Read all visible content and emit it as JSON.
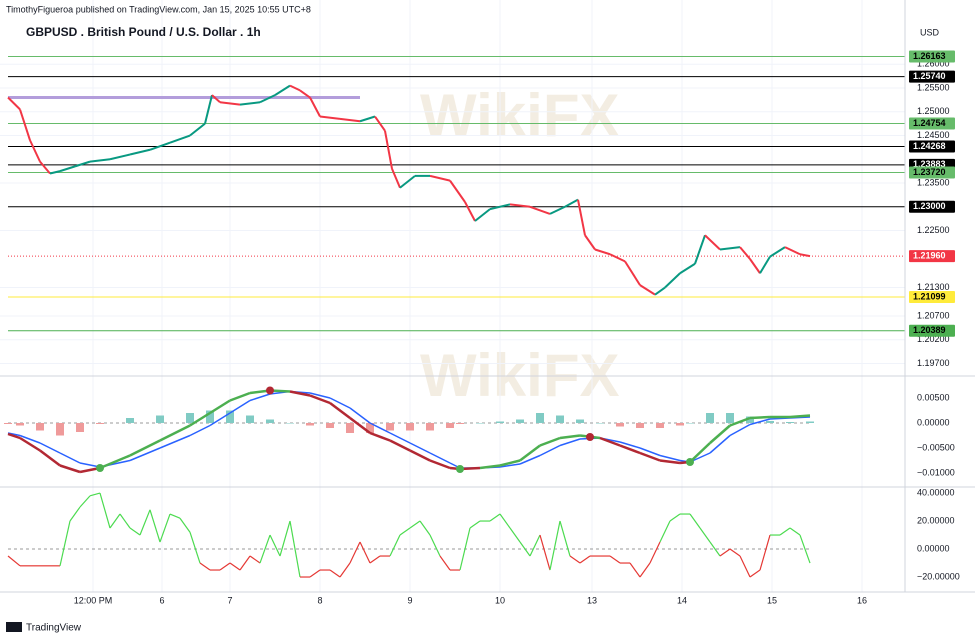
{
  "header": {
    "publisher": "TimothyFigueroa published on TradingView.com, Jan 15, 2025 10:55 UTC+8",
    "footer": "TradingView",
    "watermark": "WikiFX",
    "currency": "USD"
  },
  "chart_data": [
    {
      "type": "line",
      "title": "GBPUSD . British Pound / U.S. Dollar . 1h",
      "x": [
        0.8,
        2,
        3,
        4,
        5,
        6,
        7.5,
        9,
        11,
        13,
        15,
        17,
        19,
        20.5,
        21.2,
        22,
        24,
        26,
        27.5,
        29,
        30,
        31,
        32,
        34,
        36,
        37.5,
        38.5,
        39.2,
        40,
        41.5,
        43,
        45,
        46.5,
        47.5,
        49,
        51,
        53,
        55,
        56.5,
        57.8,
        58.5,
        59.5,
        61,
        62.5,
        64,
        65.5,
        66.5,
        68,
        69.5,
        70.5,
        72,
        74,
        75,
        76,
        77,
        78.5,
        80,
        81
      ],
      "values": [
        1.253,
        1.2505,
        1.244,
        1.2395,
        1.237,
        1.2375,
        1.2385,
        1.2395,
        1.24,
        1.241,
        1.242,
        1.2435,
        1.245,
        1.2475,
        1.2535,
        1.252,
        1.2515,
        1.252,
        1.2535,
        1.2555,
        1.2545,
        1.253,
        1.249,
        1.2485,
        1.248,
        1.249,
        1.246,
        1.238,
        1.234,
        1.2365,
        1.2365,
        1.2355,
        1.231,
        1.227,
        1.2295,
        1.2305,
        1.23,
        1.2285,
        1.23,
        1.2315,
        1.224,
        1.221,
        1.22,
        1.2185,
        1.2135,
        1.2115,
        1.213,
        1.216,
        1.218,
        1.224,
        1.221,
        1.2215,
        1.219,
        1.216,
        1.2195,
        1.2215,
        1.22,
        1.2196
      ],
      "up_color": "#089981",
      "down_color": "#f23645",
      "grid": true,
      "xlim": [
        0,
        90
      ],
      "ylim": [
        1.19458,
        1.27353
      ],
      "yticks": [
        {
          "value": 1.26,
          "label": "1.26000"
        },
        {
          "value": 1.255,
          "label": "1.25500"
        },
        {
          "value": 1.25,
          "label": "1.25000"
        },
        {
          "value": 1.245,
          "label": "1.24500"
        },
        {
          "value": 1.235,
          "label": "1.23500"
        },
        {
          "value": 1.225,
          "label": "1.22500"
        },
        {
          "value": 1.213,
          "label": "1.21300"
        },
        {
          "value": 1.207,
          "label": "1.20700"
        },
        {
          "value": 1.202,
          "label": "1.20200"
        },
        {
          "value": 1.197,
          "label": "1.19700"
        }
      ],
      "levels": [
        {
          "value": 1.26163,
          "label": "1.26163",
          "color": "#66bb6a",
          "text_color": "#000000"
        },
        {
          "value": 1.2574,
          "label": "1.25740",
          "color": "#000000",
          "text_color": "#ffffff"
        },
        {
          "value": 1.24754,
          "label": "1.24754",
          "color": "#66bb6a",
          "text_color": "#000000"
        },
        {
          "value": 1.24268,
          "label": "1.24268",
          "color": "#000000",
          "text_color": "#ffffff"
        },
        {
          "value": 1.23883,
          "label": "1.23883",
          "color": "#000000",
          "text_color": "#ffffff"
        },
        {
          "value": 1.2372,
          "label": "1.23720",
          "color": "#66bb6a",
          "text_color": "#000000"
        },
        {
          "value": 1.23,
          "label": "1.23000",
          "color": "#000000",
          "text_color": "#ffffff"
        },
        {
          "value": 1.21099,
          "label": "1.21099",
          "color": "#ffeb3b",
          "text_color": "#000000"
        },
        {
          "value": 1.20389,
          "label": "1.20389",
          "color": "#4caf50",
          "text_color": "#000000"
        }
      ],
      "last": {
        "value": 1.2196,
        "label": "1.21960",
        "color": "#f23645"
      },
      "range_line": {
        "value": 1.253,
        "x": [
          0.8,
          36
        ],
        "color": "#b39ddb"
      }
    },
    {
      "type": "macd",
      "x": [
        0.8,
        2,
        4,
        6,
        8,
        10,
        13,
        16,
        19,
        21,
        23,
        25,
        27,
        29,
        31,
        33,
        35,
        37,
        39,
        41,
        43,
        45,
        46,
        48,
        50,
        52,
        54,
        56,
        58,
        60,
        62,
        64,
        66,
        68,
        69,
        71,
        73,
        75,
        77,
        79,
        81
      ],
      "macd": {
        "values": [
          -0.0022,
          -0.003,
          -0.0055,
          -0.0085,
          -0.0098,
          -0.009,
          -0.0065,
          -0.0035,
          -0.0005,
          0.002,
          0.0045,
          0.006,
          0.0065,
          0.0063,
          0.0055,
          0.004,
          0.001,
          -0.002,
          -0.0035,
          -0.0055,
          -0.0075,
          -0.009,
          -0.0092,
          -0.009,
          -0.0085,
          -0.0075,
          -0.0045,
          -0.003,
          -0.0025,
          -0.003,
          -0.0045,
          -0.006,
          -0.0075,
          -0.008,
          -0.0078,
          -0.004,
          -0.0005,
          0.001,
          0.0012,
          0.0012,
          0.0015
        ],
        "up_color": "#4caf50",
        "down_color": "#b22833"
      },
      "signal": {
        "values": [
          -0.002,
          -0.0025,
          -0.004,
          -0.006,
          -0.008,
          -0.0088,
          -0.0075,
          -0.005,
          -0.0025,
          -0.0005,
          0.002,
          0.0045,
          0.0058,
          0.0063,
          0.006,
          0.005,
          0.003,
          0,
          -0.002,
          -0.004,
          -0.006,
          -0.008,
          -0.009,
          -0.009,
          -0.0088,
          -0.0082,
          -0.0065,
          -0.0045,
          -0.0032,
          -0.003,
          -0.0038,
          -0.005,
          -0.0065,
          -0.0075,
          -0.0078,
          -0.006,
          -0.0025,
          -0.0003,
          0.0008,
          0.001,
          0.0012
        ],
        "color": "#2962ff"
      },
      "histogram": {
        "values": [
          -0.0002,
          -0.0005,
          -0.0015,
          -0.0025,
          -0.0018,
          -0.0002,
          0.001,
          0.0015,
          0.002,
          0.0025,
          0.0025,
          0.0015,
          0.0007,
          0,
          -0.0005,
          -0.001,
          -0.002,
          -0.002,
          -0.0015,
          -0.0015,
          -0.0015,
          -0.001,
          -0.0002,
          0,
          0.0003,
          0.0007,
          0.002,
          0.0015,
          0.0007,
          0,
          -0.0007,
          -0.001,
          -0.001,
          -0.0005,
          0,
          0.002,
          0.002,
          0.0013,
          0.0004,
          0.0002,
          0.0003
        ],
        "up_color": "#80cbc4",
        "down_color": "#ef9a9a"
      },
      "markers": [
        {
          "x": 10,
          "value": -0.009,
          "color": "#4caf50"
        },
        {
          "x": 27,
          "value": 0.0065,
          "color": "#b22833"
        },
        {
          "x": 46,
          "value": -0.0092,
          "color": "#4caf50"
        },
        {
          "x": 59,
          "value": -0.0028,
          "color": "#b22833"
        },
        {
          "x": 69,
          "value": -0.0078,
          "color": "#4caf50"
        }
      ],
      "xlim": [
        0,
        90
      ],
      "ylim": [
        -0.0124,
        0.009
      ],
      "yticks": [
        {
          "value": 0.005,
          "label": "0.00500"
        },
        {
          "value": 0,
          "label": "0.00000"
        },
        {
          "value": -0.005,
          "label": "−0.00500"
        },
        {
          "value": -0.01,
          "label": "−0.01000"
        }
      ]
    },
    {
      "type": "oscillator",
      "x": [
        0.8,
        2,
        3,
        4,
        5,
        6,
        7,
        8,
        9,
        10,
        11,
        12,
        13,
        14,
        15,
        16,
        17,
        18,
        19,
        20,
        21,
        22,
        23,
        24,
        25,
        26,
        27,
        28,
        29,
        30,
        31,
        32,
        33,
        34,
        35,
        36,
        37,
        38,
        39,
        40,
        41,
        42,
        43,
        44,
        45,
        46,
        47,
        48,
        49,
        50,
        51,
        52,
        53,
        54,
        55,
        56,
        57,
        58,
        59,
        60,
        61,
        62,
        63,
        64,
        65,
        66,
        67,
        68,
        69,
        70,
        71,
        72,
        73,
        74,
        75,
        76,
        77,
        78,
        79,
        80,
        81
      ],
      "values": [
        -5,
        -12,
        -12,
        -12,
        -12,
        -12,
        20,
        30,
        38,
        40,
        15,
        25,
        15,
        10,
        28,
        5,
        25,
        22,
        12,
        -10,
        -15,
        -15,
        -10,
        -15,
        -5,
        -10,
        10,
        -5,
        20,
        -20,
        -20,
        -15,
        -15,
        -20,
        -10,
        5,
        -10,
        -5,
        -5,
        10,
        15,
        20,
        10,
        -5,
        -15,
        -15,
        15,
        20,
        20,
        25,
        15,
        5,
        -5,
        10,
        -15,
        20,
        -5,
        -10,
        -5,
        -5,
        -5,
        -10,
        -10,
        -20,
        -10,
        5,
        20,
        25,
        25,
        15,
        5,
        -5,
        0,
        -5,
        -20,
        -15,
        10,
        10,
        15,
        10,
        -10
      ],
      "up_color": "#4cdb50",
      "down_color": "#e53935",
      "xlim": [
        0,
        90
      ],
      "ylim": [
        -30.7,
        43.6
      ],
      "yticks": [
        {
          "value": 40,
          "label": "40.00000"
        },
        {
          "value": 20,
          "label": "20.00000"
        },
        {
          "value": 0,
          "label": "0.00000"
        },
        {
          "value": -20,
          "label": "−20.00000"
        }
      ],
      "xticks": [
        {
          "value": 9.3,
          "label": "12:00 PM"
        },
        {
          "value": 16.2,
          "label": "6"
        },
        {
          "value": 23,
          "label": "7"
        },
        {
          "value": 32,
          "label": "8"
        },
        {
          "value": 41,
          "label": "9"
        },
        {
          "value": 50,
          "label": "10"
        },
        {
          "value": 59.2,
          "label": "13"
        },
        {
          "value": 68.2,
          "label": "14"
        },
        {
          "value": 77.2,
          "label": "15"
        },
        {
          "value": 86.2,
          "label": "16"
        }
      ]
    }
  ]
}
